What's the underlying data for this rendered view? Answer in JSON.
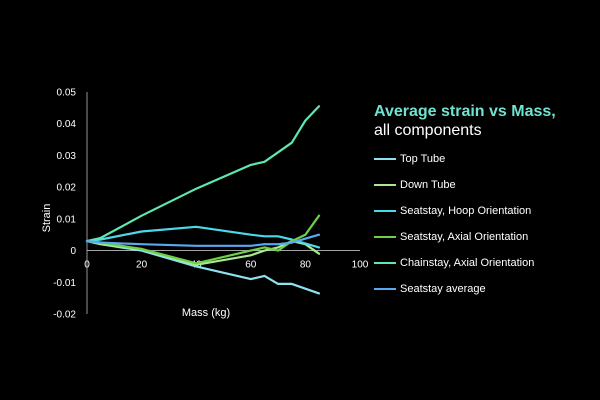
{
  "chart_data": {
    "type": "line",
    "title": "Average strain vs Mass,",
    "subtitle": "all components",
    "xlabel": "Mass (kg)",
    "ylabel": "Strain",
    "xlim": [
      0,
      100
    ],
    "ylim": [
      -0.02,
      0.05
    ],
    "xticks": [
      "0",
      "20",
      "40",
      "60",
      "80",
      "100"
    ],
    "yticks": [
      "0.05",
      "0.04",
      "0.03",
      "0.02",
      "0.01",
      "0",
      "-0.01",
      "-0.02"
    ],
    "legend_position": "right",
    "grid": false,
    "series": [
      {
        "name": "Top Tube",
        "color": "#8fe0f0",
        "x": [
          0,
          5,
          20,
          40,
          60,
          65,
          70,
          75,
          85
        ],
        "y": [
          0.003,
          0.002,
          0.0,
          -0.005,
          -0.009,
          -0.008,
          -0.0105,
          -0.0105,
          -0.0135
        ]
      },
      {
        "name": "Down Tube",
        "color": "#a8e890",
        "x": [
          0,
          5,
          20,
          40,
          60,
          65,
          70,
          75,
          80,
          85
        ],
        "y": [
          0.003,
          0.002,
          0.0005,
          -0.0045,
          -0.0015,
          0.0,
          0.001,
          0.003,
          0.002,
          -0.001
        ]
      },
      {
        "name": "Seatstay, Hoop Orientation",
        "color": "#4dd8e8",
        "x": [
          0,
          5,
          20,
          40,
          60,
          65,
          70,
          75,
          85
        ],
        "y": [
          0.003,
          0.0035,
          0.006,
          0.0075,
          0.005,
          0.0045,
          0.0045,
          0.0035,
          0.001
        ]
      },
      {
        "name": "Seatstay, Axial Orientation",
        "color": "#6dd048",
        "x": [
          0,
          5,
          20,
          40,
          60,
          65,
          70,
          75,
          80,
          85
        ],
        "y": [
          0.003,
          0.0025,
          0.0005,
          -0.004,
          0.0,
          0.001,
          0.0,
          0.003,
          0.005,
          0.011
        ]
      },
      {
        "name": "Chainstay, Axial Orientation",
        "color": "#5ee8b0",
        "x": [
          0,
          5,
          20,
          40,
          60,
          65,
          75,
          80,
          85
        ],
        "y": [
          0.003,
          0.004,
          0.011,
          0.0195,
          0.027,
          0.028,
          0.034,
          0.041,
          0.0455
        ]
      },
      {
        "name": "Seatstay average",
        "color": "#5aa8f0",
        "x": [
          0,
          5,
          20,
          40,
          60,
          65,
          70,
          75,
          85
        ],
        "y": [
          0.003,
          0.0025,
          0.002,
          0.0015,
          0.0015,
          0.002,
          0.002,
          0.0025,
          0.005
        ]
      }
    ]
  }
}
